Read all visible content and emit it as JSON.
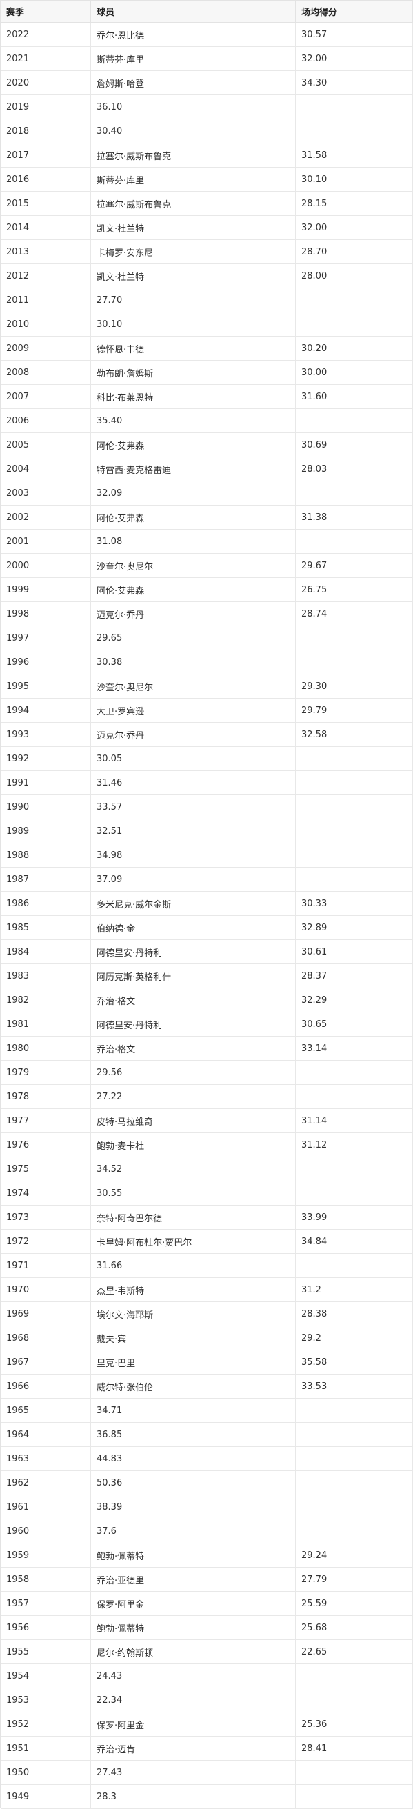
{
  "headers": [
    "赛季",
    "球员",
    "场均得分"
  ],
  "rows": [
    [
      "2022",
      "乔尔·恩比德",
      "30.57"
    ],
    [
      "2021",
      "斯蒂芬·库里",
      "32.00"
    ],
    [
      "2020",
      "詹姆斯·哈登",
      "34.30"
    ],
    [
      "2019",
      "36.10",
      ""
    ],
    [
      "2018",
      "30.40",
      ""
    ],
    [
      "2017",
      "拉塞尔·威斯布鲁克",
      "31.58"
    ],
    [
      "2016",
      "斯蒂芬·库里",
      "30.10"
    ],
    [
      "2015",
      "拉塞尔·威斯布鲁克",
      "28.15"
    ],
    [
      "2014",
      "凯文·杜兰特",
      "32.00"
    ],
    [
      "2013",
      "卡梅罗·安东尼",
      "28.70"
    ],
    [
      "2012",
      "凯文·杜兰特",
      "28.00"
    ],
    [
      "2011",
      "27.70",
      ""
    ],
    [
      "2010",
      "30.10",
      ""
    ],
    [
      "2009",
      "德怀恩·韦德",
      "30.20"
    ],
    [
      "2008",
      "勒布朗·詹姆斯",
      "30.00"
    ],
    [
      "2007",
      "科比·布莱恩特",
      "31.60"
    ],
    [
      "2006",
      "35.40",
      ""
    ],
    [
      "2005",
      "阿伦·艾弗森",
      "30.69"
    ],
    [
      "2004",
      "特雷西·麦克格雷迪",
      "28.03"
    ],
    [
      "2003",
      "32.09",
      ""
    ],
    [
      "2002",
      "阿伦·艾弗森",
      "31.38"
    ],
    [
      "2001",
      "31.08",
      ""
    ],
    [
      "2000",
      "沙奎尔·奥尼尔",
      "29.67"
    ],
    [
      "1999",
      "阿伦·艾弗森",
      "26.75"
    ],
    [
      "1998",
      "迈克尔·乔丹",
      "28.74"
    ],
    [
      "1997",
      "29.65",
      ""
    ],
    [
      "1996",
      "30.38",
      ""
    ],
    [
      "1995",
      "沙奎尔·奥尼尔",
      "29.30"
    ],
    [
      "1994",
      "大卫·罗宾逊",
      "29.79"
    ],
    [
      "1993",
      "迈克尔·乔丹",
      "32.58"
    ],
    [
      "1992",
      "30.05",
      ""
    ],
    [
      "1991",
      "31.46",
      ""
    ],
    [
      "1990",
      "33.57",
      ""
    ],
    [
      "1989",
      "32.51",
      ""
    ],
    [
      "1988",
      "34.98",
      ""
    ],
    [
      "1987",
      "37.09",
      ""
    ],
    [
      "1986",
      "多米尼克·威尔金斯",
      "30.33"
    ],
    [
      "1985",
      "伯纳德·金",
      "32.89"
    ],
    [
      "1984",
      "阿德里安·丹特利",
      "30.61"
    ],
    [
      "1983",
      "阿历克斯·英格利什",
      "28.37"
    ],
    [
      "1982",
      "乔治·格文",
      "32.29"
    ],
    [
      "1981",
      "阿德里安·丹特利",
      "30.65"
    ],
    [
      "1980",
      "乔治·格文",
      "33.14"
    ],
    [
      "1979",
      "29.56",
      ""
    ],
    [
      "1978",
      "27.22",
      ""
    ],
    [
      "1977",
      "皮特·马拉维奇",
      "31.14"
    ],
    [
      "1976",
      "鲍勃·麦卡杜",
      "31.12"
    ],
    [
      "1975",
      "34.52",
      ""
    ],
    [
      "1974",
      "30.55",
      ""
    ],
    [
      "1973",
      "奈特·阿奇巴尔德",
      "33.99"
    ],
    [
      "1972",
      "卡里姆·阿布杜尔·贾巴尔",
      "34.84"
    ],
    [
      "1971",
      "31.66",
      ""
    ],
    [
      "1970",
      "杰里·韦斯特",
      "31.2"
    ],
    [
      "1969",
      "埃尔文·海耶斯",
      "28.38"
    ],
    [
      "1968",
      "戴夫·宾",
      "29.2"
    ],
    [
      "1967",
      "里克·巴里",
      "35.58"
    ],
    [
      "1966",
      "威尔特·张伯伦",
      "33.53"
    ],
    [
      "1965",
      "34.71",
      ""
    ],
    [
      "1964",
      "36.85",
      ""
    ],
    [
      "1963",
      "44.83",
      ""
    ],
    [
      "1962",
      "50.36",
      ""
    ],
    [
      "1961",
      "38.39",
      ""
    ],
    [
      "1960",
      "37.6",
      ""
    ],
    [
      "1959",
      "鲍勃·佩蒂特",
      "29.24"
    ],
    [
      "1958",
      "乔治·亚德里",
      "27.79"
    ],
    [
      "1957",
      "保罗·阿里金",
      "25.59"
    ],
    [
      "1956",
      "鲍勃·佩蒂特",
      "25.68"
    ],
    [
      "1955",
      "尼尔·约翰斯顿",
      "22.65"
    ],
    [
      "1954",
      "24.43",
      ""
    ],
    [
      "1953",
      "22.34",
      ""
    ],
    [
      "1952",
      "保罗·阿里金",
      "25.36"
    ],
    [
      "1951",
      "乔治·迈肯",
      "28.41"
    ],
    [
      "1950",
      "27.43",
      ""
    ],
    [
      "1949",
      "28.3",
      ""
    ]
  ]
}
